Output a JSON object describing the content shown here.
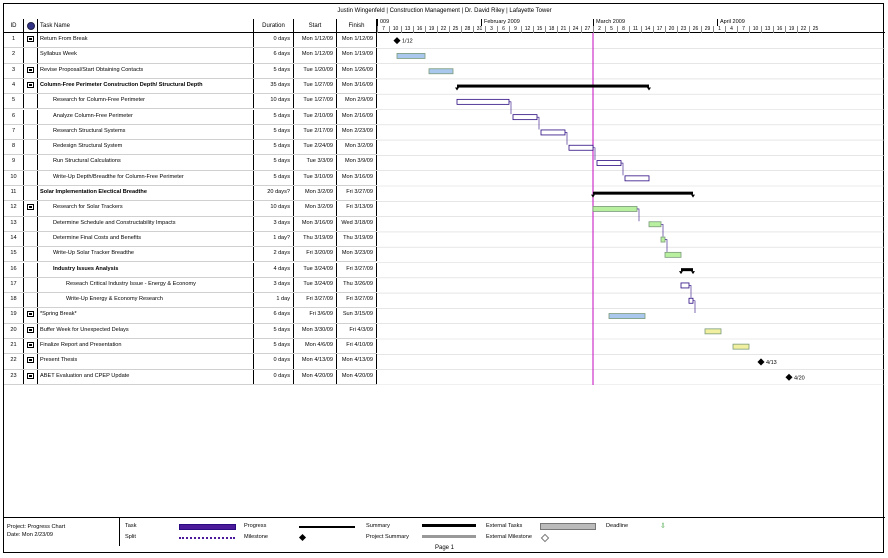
{
  "header": {
    "title": "Justin Wingenfeld | Construction Management | Dr. David Riley | Lafayette Tower"
  },
  "columns": {
    "id": "ID",
    "name": "Task Name",
    "duration": "Duration",
    "start": "Start",
    "finish": "Finish"
  },
  "timescale": {
    "months": [
      {
        "label": "009",
        "start_day": 0
      },
      {
        "label": "February 2009",
        "start_day": 26
      },
      {
        "label": "March 2009",
        "start_day": 54
      },
      {
        "label": "April 2009",
        "start_day": 85
      }
    ],
    "days": [
      "7",
      "10",
      "13",
      "16",
      "19",
      "22",
      "25",
      "28",
      "31",
      "3",
      "6",
      "9",
      "12",
      "15",
      "18",
      "21",
      "24",
      "27",
      "2",
      "5",
      "8",
      "11",
      "14",
      "17",
      "20",
      "23",
      "26",
      "29",
      "1",
      "4",
      "7",
      "10",
      "13",
      "16",
      "19",
      "22",
      "25"
    ],
    "today_label": "Mon 2/23/09"
  },
  "tasks": [
    {
      "id": "1",
      "name": "Return From Break",
      "duration": "0 days",
      "start": "Mon 1/12/09",
      "finish": "Mon 1/12/09",
      "indent": 0,
      "summary": false,
      "note": true,
      "type": "milestone",
      "s": 0,
      "e": 0,
      "color": "#000000",
      "label": "1/12"
    },
    {
      "id": "2",
      "name": "Syllabus Week",
      "duration": "6 days",
      "start": "Mon 1/12/09",
      "finish": "Mon 1/19/09",
      "indent": 0,
      "summary": false,
      "note": false,
      "type": "task",
      "s": 0,
      "e": 7,
      "color": "#aac8ee"
    },
    {
      "id": "3",
      "name": "Revise Proposal/Start Obtaining Contacts",
      "duration": "5 days",
      "start": "Tue 1/20/09",
      "finish": "Mon 1/26/09",
      "indent": 0,
      "summary": false,
      "note": true,
      "type": "task",
      "s": 8,
      "e": 14,
      "color": "#aac8ee"
    },
    {
      "id": "4",
      "name": "Column-Free Perimeter Construction Depth/ Structural Depth",
      "duration": "35 days",
      "start": "Tue 1/27/09",
      "finish": "Mon 3/16/09",
      "indent": 0,
      "summary": true,
      "note": true,
      "type": "summary",
      "s": 15,
      "e": 63,
      "color": "#000000"
    },
    {
      "id": "5",
      "name": "Research for Column-Free Perimeter",
      "duration": "10 days",
      "start": "Tue 1/27/09",
      "finish": "Mon 2/9/09",
      "indent": 1,
      "summary": false,
      "note": false,
      "type": "task",
      "s": 15,
      "e": 28,
      "color": "#4b1a9a"
    },
    {
      "id": "6",
      "name": "Analyze Column-Free Perimeter",
      "duration": "5 days",
      "start": "Tue 2/10/09",
      "finish": "Mon 2/16/09",
      "indent": 1,
      "summary": false,
      "note": false,
      "type": "task",
      "s": 29,
      "e": 35,
      "color": "#4b1a9a"
    },
    {
      "id": "7",
      "name": "Research Structural Systems",
      "duration": "5 days",
      "start": "Tue 2/17/09",
      "finish": "Mon 2/23/09",
      "indent": 1,
      "summary": false,
      "note": false,
      "type": "task",
      "s": 36,
      "e": 42,
      "color": "#4b1a9a"
    },
    {
      "id": "8",
      "name": "Redesign Structural System",
      "duration": "5 days",
      "start": "Tue 2/24/09",
      "finish": "Mon 3/2/09",
      "indent": 1,
      "summary": false,
      "note": false,
      "type": "task",
      "s": 43,
      "e": 49,
      "color": "#4b1a9a"
    },
    {
      "id": "9",
      "name": "Run Structural Calculations",
      "duration": "5 days",
      "start": "Tue 3/3/09",
      "finish": "Mon 3/9/09",
      "indent": 1,
      "summary": false,
      "note": false,
      "type": "task",
      "s": 50,
      "e": 56,
      "color": "#4b1a9a"
    },
    {
      "id": "10",
      "name": "Write-Up Depth/Breadthe for Column-Free Perimeter",
      "duration": "5 days",
      "start": "Tue 3/10/09",
      "finish": "Mon 3/16/09",
      "indent": 1,
      "summary": false,
      "note": false,
      "type": "task",
      "s": 57,
      "e": 63,
      "color": "#4b1a9a"
    },
    {
      "id": "11",
      "name": "Solar Implementation Electical Breadthe",
      "duration": "20 days?",
      "start": "Mon 3/2/09",
      "finish": "Fri 3/27/09",
      "indent": 0,
      "summary": true,
      "note": false,
      "type": "summary",
      "s": 49,
      "e": 74,
      "color": "#000000"
    },
    {
      "id": "12",
      "name": "Research for Solar Trackers",
      "duration": "10 days",
      "start": "Mon 3/2/09",
      "finish": "Fri 3/13/09",
      "indent": 1,
      "summary": false,
      "note": true,
      "type": "task",
      "s": 49,
      "e": 60,
      "color": "#b8f0a0"
    },
    {
      "id": "13",
      "name": "Determine Schedule and Constructability Impacts",
      "duration": "3 days",
      "start": "Mon 3/16/09",
      "finish": "Wed 3/18/09",
      "indent": 1,
      "summary": false,
      "note": false,
      "type": "task",
      "s": 63,
      "e": 66,
      "color": "#b8f0a0"
    },
    {
      "id": "14",
      "name": "Determine Final Costs and Benefits",
      "duration": "1 day?",
      "start": "Thu 3/19/09",
      "finish": "Thu 3/19/09",
      "indent": 1,
      "summary": false,
      "note": false,
      "type": "task",
      "s": 66,
      "e": 67,
      "color": "#b8f0a0"
    },
    {
      "id": "15",
      "name": "Write-Up Solar Tracker Breadthe",
      "duration": "2 days",
      "start": "Fri 3/20/09",
      "finish": "Mon 3/23/09",
      "indent": 1,
      "summary": false,
      "note": false,
      "type": "task",
      "s": 67,
      "e": 71,
      "color": "#b8f0a0"
    },
    {
      "id": "16",
      "name": "Industry Issues Analysis",
      "duration": "4 days",
      "start": "Tue 3/24/09",
      "finish": "Fri 3/27/09",
      "indent": 1,
      "summary": true,
      "note": false,
      "type": "summary",
      "s": 71,
      "e": 74,
      "color": "#000000"
    },
    {
      "id": "17",
      "name": "Reseach Critical Industry Issue - Energy & Economy",
      "duration": "3 days",
      "start": "Tue 3/24/09",
      "finish": "Thu 3/26/09",
      "indent": 2,
      "summary": false,
      "note": false,
      "type": "task",
      "s": 71,
      "e": 73,
      "color": "#4b1a9a"
    },
    {
      "id": "18",
      "name": "Write-Up Energy & Economy Research",
      "duration": "1 day",
      "start": "Fri 3/27/09",
      "finish": "Fri 3/27/09",
      "indent": 2,
      "summary": false,
      "note": false,
      "type": "task",
      "s": 73,
      "e": 74,
      "color": "#4b1a9a"
    },
    {
      "id": "19",
      "name": "*Spring Break*",
      "duration": "6 days",
      "start": "Fri 3/6/09",
      "finish": "Sun 3/15/09",
      "indent": 0,
      "summary": false,
      "note": true,
      "type": "task",
      "s": 53,
      "e": 62,
      "color": "#aac8ee"
    },
    {
      "id": "20",
      "name": "Buffer Week for Unexpected Delays",
      "duration": "5 days",
      "start": "Mon 3/30/09",
      "finish": "Fri 4/3/09",
      "indent": 0,
      "summary": false,
      "note": true,
      "type": "task",
      "s": 77,
      "e": 81,
      "color": "#f0f0a0"
    },
    {
      "id": "21",
      "name": "Finalize Report and Presentation",
      "duration": "5 days",
      "start": "Mon 4/6/09",
      "finish": "Fri 4/10/09",
      "indent": 0,
      "summary": false,
      "note": true,
      "type": "task",
      "s": 84,
      "e": 88,
      "color": "#f0f0a0"
    },
    {
      "id": "22",
      "name": "Present Thesis",
      "duration": "0 days",
      "start": "Mon 4/13/09",
      "finish": "Mon 4/13/09",
      "indent": 0,
      "summary": false,
      "note": true,
      "type": "milestone",
      "s": 91,
      "e": 91,
      "color": "#000000",
      "label": "4/13"
    },
    {
      "id": "23",
      "name": "ABET Evaluation and CPEP Update",
      "duration": "0 days",
      "start": "Mon 4/20/09",
      "finish": "Mon 4/20/09",
      "indent": 0,
      "summary": false,
      "note": true,
      "type": "milestone",
      "s": 98,
      "e": 98,
      "color": "#000000",
      "label": "4/20"
    }
  ],
  "legend": {
    "project_label": "Project: Progress Chart",
    "date_label": "Date: Mon 2/23/09",
    "items": [
      "Task",
      "Split",
      "Progress",
      "Milestone",
      "Summary",
      "Project Summary",
      "External Tasks",
      "External Milestone",
      "Deadline"
    ]
  },
  "footer": {
    "page": "Page 1"
  },
  "colors": {
    "today_line": "#cc33cc",
    "task_border": "#2a0a80"
  }
}
